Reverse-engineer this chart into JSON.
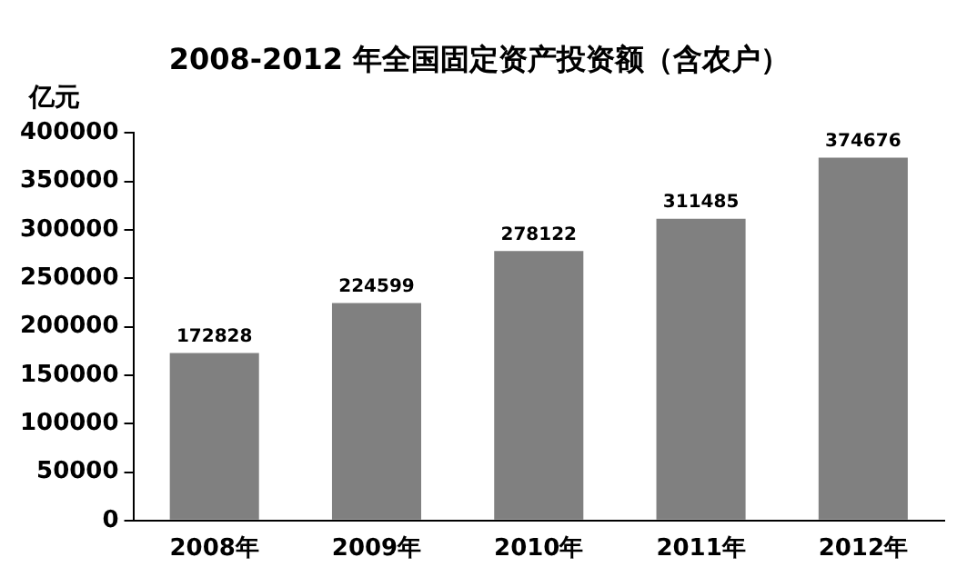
{
  "chart_data": {
    "type": "bar",
    "title": "2008-2012 年全国固定资产投资额（含农户）",
    "ylabel": "亿元",
    "categories": [
      "2008年",
      "2009年",
      "2010年",
      "2011年",
      "2012年"
    ],
    "values": [
      172828,
      224599,
      278122,
      311485,
      374676
    ],
    "color": "#808080",
    "ylim": [
      0,
      400000
    ],
    "yticks": [
      0,
      50000,
      100000,
      150000,
      200000,
      250000,
      300000,
      350000,
      400000
    ],
    "grid": false,
    "legend": false,
    "data_labels": true
  }
}
